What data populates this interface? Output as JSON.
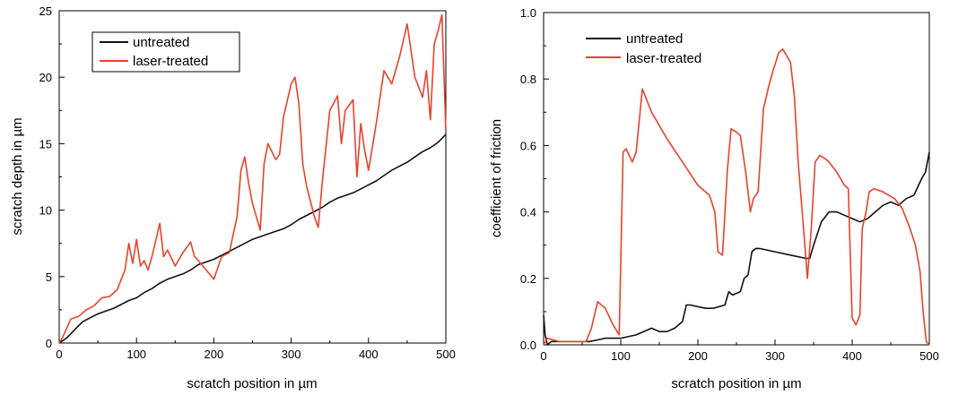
{
  "chart_data": [
    {
      "type": "line",
      "xlabel": "scratch position in µm",
      "ylabel": "scratch depth in µm",
      "xlim": [
        0,
        500
      ],
      "ylim": [
        0,
        25
      ],
      "xticks": [
        0,
        100,
        200,
        300,
        400,
        500
      ],
      "yticks": [
        0,
        5,
        10,
        15,
        20,
        25
      ],
      "grid": false,
      "legend": "top-left",
      "series": [
        {
          "name": "untreated",
          "color": "#111111",
          "x": [
            0,
            10,
            20,
            30,
            40,
            50,
            60,
            70,
            80,
            90,
            100,
            110,
            120,
            130,
            140,
            150,
            160,
            170,
            180,
            190,
            200,
            210,
            220,
            230,
            240,
            250,
            260,
            270,
            280,
            290,
            300,
            310,
            320,
            330,
            340,
            350,
            360,
            370,
            380,
            390,
            400,
            410,
            420,
            430,
            440,
            450,
            460,
            470,
            480,
            490,
            500
          ],
          "y": [
            0,
            0.4,
            1.0,
            1.6,
            1.9,
            2.2,
            2.4,
            2.6,
            2.9,
            3.2,
            3.4,
            3.8,
            4.1,
            4.5,
            4.8,
            5.0,
            5.2,
            5.5,
            5.9,
            6.1,
            6.3,
            6.6,
            6.9,
            7.2,
            7.5,
            7.8,
            8.0,
            8.2,
            8.4,
            8.6,
            8.9,
            9.3,
            9.6,
            9.9,
            10.2,
            10.6,
            10.9,
            11.1,
            11.3,
            11.6,
            11.9,
            12.2,
            12.6,
            13.0,
            13.3,
            13.6,
            14.0,
            14.4,
            14.7,
            15.1,
            15.7
          ]
        },
        {
          "name": "laser-treated",
          "color": "#e8432d",
          "x": [
            0,
            5,
            15,
            25,
            35,
            45,
            55,
            65,
            75,
            85,
            90,
            95,
            100,
            105,
            110,
            115,
            120,
            130,
            135,
            140,
            150,
            160,
            170,
            175,
            180,
            190,
            200,
            210,
            220,
            230,
            235,
            240,
            245,
            250,
            260,
            265,
            270,
            280,
            285,
            290,
            300,
            305,
            310,
            315,
            320,
            330,
            335,
            340,
            350,
            360,
            365,
            370,
            380,
            385,
            390,
            395,
            400,
            410,
            420,
            430,
            440,
            450,
            460,
            470,
            475,
            480,
            485,
            490,
            495,
            500
          ],
          "y": [
            0,
            0.5,
            1.8,
            2.0,
            2.5,
            2.8,
            3.4,
            3.5,
            4.0,
            5.5,
            7.5,
            6.0,
            7.8,
            5.8,
            6.2,
            5.5,
            6.5,
            9.0,
            6.5,
            7.0,
            5.8,
            6.8,
            7.6,
            6.5,
            6.2,
            5.5,
            4.8,
            6.5,
            6.8,
            9.5,
            13.0,
            14.0,
            12.0,
            10.5,
            8.5,
            13.5,
            15.0,
            13.8,
            14.2,
            17.0,
            19.5,
            20.0,
            18.0,
            13.5,
            11.8,
            9.5,
            8.7,
            12.0,
            17.5,
            18.6,
            15.0,
            17.5,
            18.3,
            12.5,
            16.5,
            14.5,
            13.0,
            16.5,
            20.5,
            19.5,
            21.5,
            24.0,
            20.0,
            18.5,
            20.5,
            16.8,
            22.5,
            23.5,
            24.7,
            16.0
          ]
        }
      ]
    },
    {
      "type": "line",
      "xlabel": "scratch position in µm",
      "ylabel": "coefficient of friction",
      "xlim": [
        0,
        500
      ],
      "ylim": [
        0,
        1.0
      ],
      "xticks": [
        0,
        100,
        200,
        300,
        400,
        500
      ],
      "yticks": [
        0.0,
        0.2,
        0.4,
        0.6,
        0.8,
        1.0
      ],
      "grid": false,
      "legend": "top-left",
      "series": [
        {
          "name": "untreated",
          "color": "#111111",
          "x": [
            0,
            2,
            5,
            10,
            30,
            60,
            80,
            100,
            120,
            140,
            150,
            160,
            170,
            180,
            185,
            190,
            210,
            215,
            220,
            235,
            240,
            245,
            255,
            260,
            265,
            270,
            275,
            280,
            300,
            320,
            340,
            345,
            350,
            360,
            370,
            380,
            390,
            400,
            410,
            420,
            430,
            440,
            450,
            460,
            470,
            480,
            490,
            495,
            500
          ],
          "y": [
            0.09,
            0.03,
            0.0,
            0.01,
            0.01,
            0.01,
            0.02,
            0.02,
            0.03,
            0.05,
            0.04,
            0.04,
            0.05,
            0.07,
            0.12,
            0.12,
            0.11,
            0.11,
            0.11,
            0.12,
            0.16,
            0.15,
            0.16,
            0.2,
            0.21,
            0.28,
            0.29,
            0.29,
            0.28,
            0.27,
            0.26,
            0.26,
            0.3,
            0.37,
            0.4,
            0.4,
            0.39,
            0.38,
            0.37,
            0.38,
            0.4,
            0.42,
            0.43,
            0.42,
            0.44,
            0.45,
            0.5,
            0.52,
            0.58
          ]
        },
        {
          "name": "laser-treated",
          "color": "#e8432d",
          "x": [
            0,
            5,
            20,
            40,
            55,
            62,
            70,
            80,
            90,
            98,
            103,
            107,
            115,
            120,
            128,
            140,
            160,
            180,
            200,
            215,
            222,
            226,
            232,
            238,
            243,
            250,
            255,
            262,
            268,
            272,
            278,
            285,
            292,
            298,
            305,
            310,
            315,
            320,
            325,
            330,
            337,
            342,
            347,
            352,
            358,
            365,
            370,
            380,
            390,
            395,
            400,
            405,
            410,
            413,
            418,
            422,
            428,
            440,
            455,
            465,
            475,
            482,
            488,
            492,
            496,
            500
          ],
          "y": [
            0.0,
            0.02,
            0.01,
            0.01,
            0.01,
            0.05,
            0.13,
            0.11,
            0.06,
            0.03,
            0.58,
            0.59,
            0.55,
            0.58,
            0.77,
            0.7,
            0.62,
            0.55,
            0.48,
            0.45,
            0.4,
            0.28,
            0.27,
            0.52,
            0.65,
            0.64,
            0.63,
            0.52,
            0.4,
            0.44,
            0.46,
            0.71,
            0.78,
            0.83,
            0.88,
            0.89,
            0.87,
            0.85,
            0.75,
            0.55,
            0.35,
            0.2,
            0.35,
            0.55,
            0.57,
            0.56,
            0.55,
            0.52,
            0.48,
            0.47,
            0.08,
            0.06,
            0.09,
            0.35,
            0.4,
            0.46,
            0.47,
            0.46,
            0.44,
            0.41,
            0.35,
            0.3,
            0.22,
            0.1,
            0.01,
            0.0
          ]
        }
      ]
    }
  ]
}
